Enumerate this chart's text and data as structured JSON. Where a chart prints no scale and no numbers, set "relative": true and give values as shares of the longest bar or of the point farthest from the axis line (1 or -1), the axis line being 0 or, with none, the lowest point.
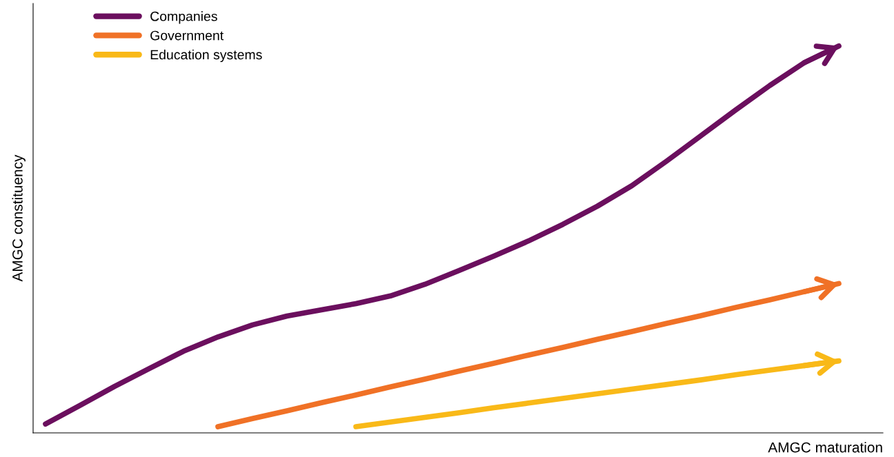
{
  "chart_data": {
    "type": "line",
    "relative": true,
    "xlabel": "AMGC maturation",
    "ylabel": "AMGC constituency",
    "categories": [
      null,
      null,
      null,
      null,
      null,
      null,
      null,
      null,
      null,
      null,
      null,
      null,
      null,
      null,
      null,
      null,
      null,
      null,
      null,
      null,
      null,
      null,
      null,
      null
    ],
    "series": [
      {
        "name": "Companies",
        "color": "#6b0f5e",
        "values": [
          0.023,
          0.071,
          0.12,
          0.166,
          0.211,
          0.248,
          0.279,
          0.302,
          0.318,
          0.334,
          0.354,
          0.384,
          0.42,
          0.457,
          0.496,
          0.539,
          0.586,
          0.639,
          0.702,
          0.768,
          0.834,
          0.898,
          0.957,
          1.0
        ]
      },
      {
        "name": "Government",
        "color": "#f07126",
        "values": [
          null,
          null,
          null,
          null,
          null,
          0.016,
          0.037,
          0.057,
          0.078,
          0.098,
          0.119,
          0.139,
          0.16,
          0.18,
          0.201,
          0.221,
          0.242,
          0.262,
          0.283,
          0.303,
          0.324,
          0.344,
          0.365,
          0.386
        ]
      },
      {
        "name": "Education systems",
        "color": "#f9b918",
        "values": [
          null,
          null,
          null,
          null,
          null,
          null,
          null,
          null,
          null,
          0.016,
          0.028,
          0.04,
          0.052,
          0.065,
          0.077,
          0.089,
          0.101,
          0.113,
          0.125,
          0.137,
          0.15,
          0.162,
          0.174,
          0.186
        ]
      }
    ],
    "marker": "none",
    "line_style": "solid",
    "legend": "top left",
    "grid": false
  }
}
